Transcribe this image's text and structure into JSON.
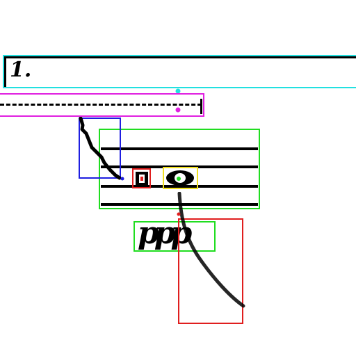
{
  "measure_number": "1.",
  "dynamic_marking": "ppp",
  "annotation_colors": {
    "cyan": "#22e0e0",
    "magenta": "#e020e0",
    "blue": "#1e1ee0",
    "green": "#20dd20",
    "red": "#e01e1e",
    "yellow": "#f0e020"
  },
  "icons": {
    "volta_bracket": "volta-bracket-icon",
    "notehead_whole": "whole-notehead-icon",
    "accidental_sharp": "sharp-accidental-icon",
    "slur": "slur-curve-icon",
    "stem": "stem-line-icon"
  }
}
